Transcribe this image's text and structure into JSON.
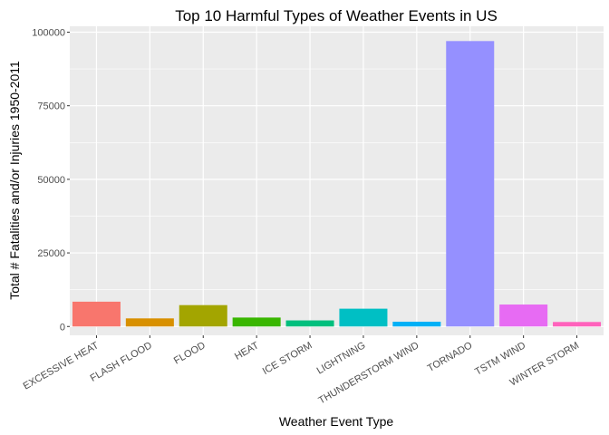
{
  "chart_data": {
    "type": "bar",
    "title": "Top 10 Harmful Types of Weather Events in US",
    "xlabel": "Weather Event Type",
    "ylabel": "Total # Fatalities and/or Injuries 1950-2011",
    "ylim": [
      -3000,
      102000
    ],
    "yticks": [
      0,
      25000,
      50000,
      75000,
      100000
    ],
    "grid": true,
    "legend": "none",
    "categories": [
      "EXCESSIVE HEAT",
      "FLASH FLOOD",
      "FLOOD",
      "HEAT",
      "ICE STORM",
      "LIGHTNING",
      "THUNDERSTORM WIND",
      "TORNADO",
      "TSTM WIND",
      "WINTER STORM"
    ],
    "values": [
      8428,
      2755,
      7259,
      3037,
      2064,
      6046,
      1621,
      96979,
      7461,
      1527
    ],
    "colors": [
      "#F8766D",
      "#D89000",
      "#A3A500",
      "#39B600",
      "#00BF7D",
      "#00BFC4",
      "#00B0F6",
      "#9590FF",
      "#E76BF3",
      "#FF62BC"
    ],
    "panel_background": "#EBEBEB",
    "gridline_color": "#FFFFFF"
  }
}
